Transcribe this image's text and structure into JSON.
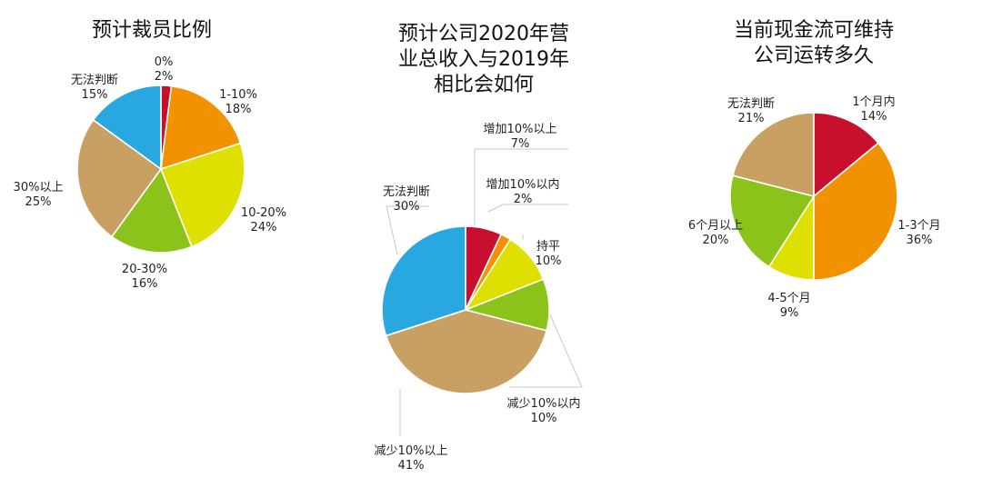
{
  "chart_data": [
    {
      "type": "pie",
      "title": [
        "预计裁员比例"
      ],
      "slices": [
        {
          "name": "0%",
          "value": 2,
          "pct": "2%",
          "color": "#c8102e"
        },
        {
          "name": "1-10%",
          "value": 18,
          "pct": "18%",
          "color": "#f39200"
        },
        {
          "name": "10-20%",
          "value": 24,
          "pct": "24%",
          "color": "#dde000"
        },
        {
          "name": "20-30%",
          "value": 16,
          "pct": "16%",
          "color": "#8cc31a"
        },
        {
          "name": "30%以上",
          "value": 25,
          "pct": "25%",
          "color": "#c8a064"
        },
        {
          "name": "无法判断",
          "value": 15,
          "pct": "15%",
          "color": "#29a7e1"
        }
      ]
    },
    {
      "type": "pie",
      "title": [
        "预计公司2020年营",
        "业总收入与2019年",
        "相比会如何"
      ],
      "slices": [
        {
          "name": "增加10%以上",
          "value": 7,
          "pct": "7%",
          "color": "#c8102e"
        },
        {
          "name": "增加10%以内",
          "value": 2,
          "pct": "2%",
          "color": "#f39200"
        },
        {
          "name": "持平",
          "value": 10,
          "pct": "10%",
          "color": "#dde000"
        },
        {
          "name": "减少10%以内",
          "value": 10,
          "pct": "10%",
          "color": "#8cc31a"
        },
        {
          "name": "减少10%以上",
          "value": 41,
          "pct": "41%",
          "color": "#c8a064"
        },
        {
          "name": "无法判断",
          "value": 30,
          "pct": "30%",
          "color": "#29a7e1"
        }
      ]
    },
    {
      "type": "pie",
      "title": [
        "当前现金流可维持",
        "公司运转多久"
      ],
      "slices": [
        {
          "name": "1个月内",
          "value": 14,
          "pct": "14%",
          "color": "#c8102e"
        },
        {
          "name": "1-3个月",
          "value": 36,
          "pct": "36%",
          "color": "#f39200"
        },
        {
          "name": "4-5个月",
          "value": 9,
          "pct": "9%",
          "color": "#dde000"
        },
        {
          "name": "6个月以上",
          "value": 20,
          "pct": "20%",
          "color": "#8cc31a"
        },
        {
          "name": "无法判断",
          "value": 21,
          "pct": "21%",
          "color": "#c8a064"
        }
      ]
    }
  ]
}
